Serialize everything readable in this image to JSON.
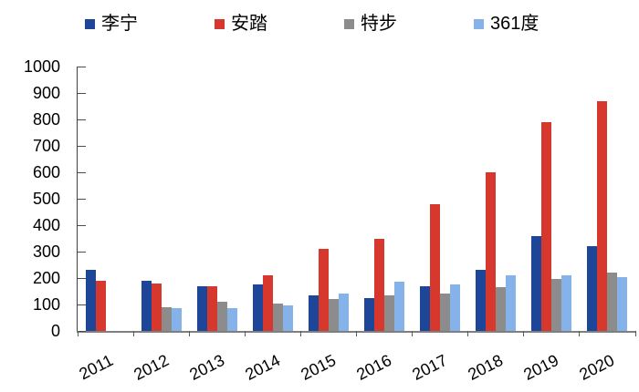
{
  "chart_data": {
    "type": "bar",
    "title": "",
    "xlabel": "",
    "ylabel": "",
    "categories": [
      "2011",
      "2012",
      "2013",
      "2014",
      "2015",
      "2016",
      "2017",
      "2018",
      "2019",
      "2020"
    ],
    "series": [
      {
        "name": "李宁",
        "color": "#1D4699",
        "values": [
          230,
          190,
          170,
          175,
          135,
          125,
          170,
          230,
          360,
          320
        ]
      },
      {
        "name": "安踏",
        "color": "#D6382E",
        "values": [
          190,
          180,
          170,
          210,
          310,
          350,
          480,
          600,
          790,
          870
        ]
      },
      {
        "name": "特步",
        "color": "#8C8C8C",
        "values": [
          0,
          90,
          110,
          105,
          120,
          135,
          140,
          165,
          195,
          220
        ]
      },
      {
        "name": "361度",
        "color": "#85B2E8",
        "values": [
          0,
          85,
          85,
          95,
          140,
          185,
          175,
          210,
          210,
          205
        ]
      }
    ],
    "ylim": [
      0,
      1000
    ],
    "ytick_step": 100,
    "y_ticks": [
      0,
      100,
      200,
      300,
      400,
      500,
      600,
      700,
      800,
      900,
      1000
    ],
    "grid": false,
    "legend_position": "top",
    "axis_color": "#404040",
    "text_color": "#000000",
    "background_color": "#FFFFFF"
  }
}
